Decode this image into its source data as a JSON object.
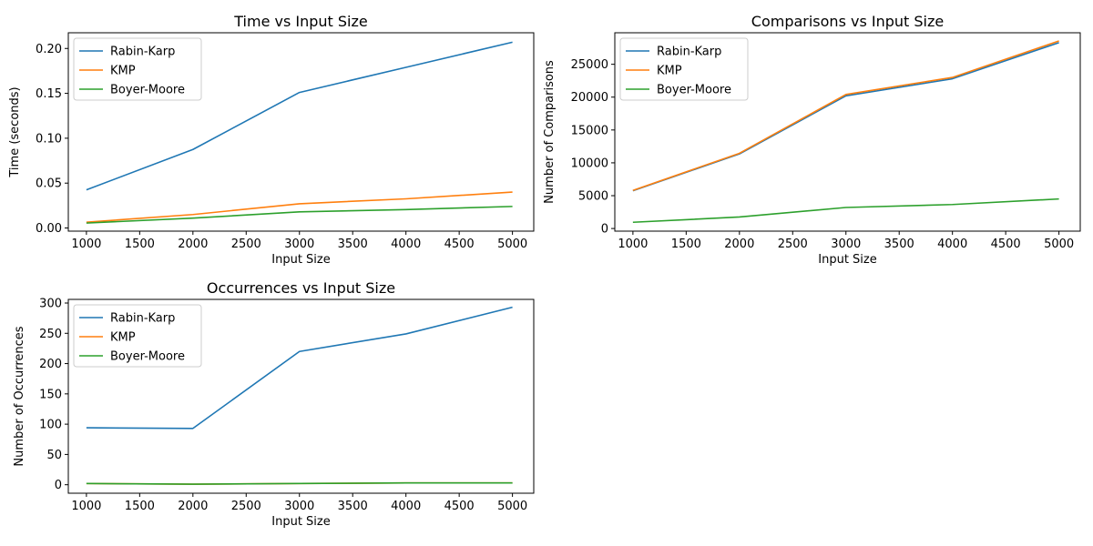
{
  "colors": {
    "Rabin-Karp": "#1f77b4",
    "KMP": "#ff7f0e",
    "Boyer-Moore": "#2ca02c"
  },
  "chart_data": [
    {
      "type": "line",
      "title": "Time vs Input Size",
      "xlabel": "Input Size",
      "ylabel": "Time (seconds)",
      "x": [
        1000,
        2000,
        3000,
        4000,
        5000
      ],
      "xlim": [
        830,
        5200
      ],
      "ylim": [
        -0.0035,
        0.2175
      ],
      "xticks": [
        1000,
        1500,
        2000,
        2500,
        3000,
        3500,
        4000,
        4500,
        5000
      ],
      "xtick_labels": [
        "1000",
        "1500",
        "2000",
        "2500",
        "3000",
        "3500",
        "4000",
        "4500",
        "5000"
      ],
      "yticks": [
        0,
        0.05,
        0.1,
        0.15,
        0.2
      ],
      "ytick_labels": [
        "0.00",
        "0.05",
        "0.10",
        "0.15",
        "0.20"
      ],
      "grid": false,
      "legend": "upper-left",
      "series": [
        {
          "name": "Rabin-Karp",
          "values": [
            0.0425,
            0.0875,
            0.151,
            0.179,
            0.207
          ]
        },
        {
          "name": "KMP",
          "values": [
            0.0065,
            0.015,
            0.027,
            0.0325,
            0.04
          ]
        },
        {
          "name": "Boyer-Moore",
          "values": [
            0.0055,
            0.011,
            0.018,
            0.0205,
            0.024
          ]
        }
      ]
    },
    {
      "type": "line",
      "title": "Comparisons vs Input Size",
      "xlabel": "Input Size",
      "ylabel": "Number of Comparisons",
      "x": [
        1000,
        2000,
        3000,
        4000,
        5000
      ],
      "xlim": [
        830,
        5200
      ],
      "ylim": [
        -400,
        29800
      ],
      "xticks": [
        1000,
        1500,
        2000,
        2500,
        3000,
        3500,
        4000,
        4500,
        5000
      ],
      "xtick_labels": [
        "1000",
        "1500",
        "2000",
        "2500",
        "3000",
        "3500",
        "4000",
        "4500",
        "5000"
      ],
      "yticks": [
        0,
        5000,
        10000,
        15000,
        20000,
        25000
      ],
      "ytick_labels": [
        "0",
        "5000",
        "10000",
        "15000",
        "20000",
        "25000"
      ],
      "grid": false,
      "legend": "upper-left",
      "series": [
        {
          "name": "Rabin-Karp",
          "values": [
            5750,
            11350,
            20200,
            22800,
            28300
          ]
        },
        {
          "name": "KMP",
          "values": [
            5800,
            11450,
            20400,
            23000,
            28550
          ]
        },
        {
          "name": "Boyer-Moore",
          "values": [
            950,
            1750,
            3200,
            3650,
            4500
          ]
        }
      ]
    },
    {
      "type": "line",
      "title": "Occurrences vs Input Size",
      "xlabel": "Input Size",
      "ylabel": "Number of Occurrences",
      "x": [
        1000,
        2000,
        3000,
        4000,
        5000
      ],
      "xlim": [
        830,
        5200
      ],
      "ylim": [
        -14,
        306
      ],
      "xticks": [
        1000,
        1500,
        2000,
        2500,
        3000,
        3500,
        4000,
        4500,
        5000
      ],
      "xtick_labels": [
        "1000",
        "1500",
        "2000",
        "2500",
        "3000",
        "3500",
        "4000",
        "4500",
        "5000"
      ],
      "yticks": [
        0,
        50,
        100,
        150,
        200,
        250,
        300
      ],
      "ytick_labels": [
        "0",
        "50",
        "100",
        "150",
        "200",
        "250",
        "300"
      ],
      "grid": false,
      "legend": "upper-left",
      "series": [
        {
          "name": "Rabin-Karp",
          "values": [
            94,
            93,
            220,
            249,
            293
          ]
        },
        {
          "name": "KMP",
          "values": [
            2,
            1,
            2,
            3,
            3
          ]
        },
        {
          "name": "Boyer-Moore",
          "values": [
            2,
            1,
            2,
            3,
            3
          ]
        }
      ]
    }
  ]
}
